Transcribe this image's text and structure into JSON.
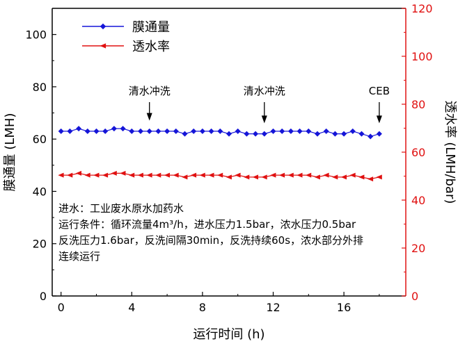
{
  "chart_data": {
    "type": "line",
    "xlabel": "运行时间 (h)",
    "ylabel_left": "膜通量 (LMH)",
    "ylabel_right": "透水率 (LMH/bar)",
    "xlim": [
      -0.5,
      19.5
    ],
    "ylim_left": [
      0,
      110
    ],
    "ylim_right": [
      0,
      120
    ],
    "xticks": [
      0,
      4,
      8,
      12,
      16
    ],
    "yticks_left": [
      0,
      20,
      40,
      60,
      80,
      100
    ],
    "yticks_right": [
      0,
      20,
      40,
      60,
      80,
      100,
      120
    ],
    "x": [
      0,
      0.5,
      1,
      1.5,
      2,
      2.5,
      3,
      3.5,
      4,
      4.5,
      5,
      5.5,
      6,
      6.5,
      7,
      7.5,
      8,
      8.5,
      9,
      9.5,
      10,
      10.5,
      11,
      11.5,
      12,
      12.5,
      13,
      13.5,
      14,
      14.5,
      15,
      15.5,
      16,
      16.5,
      17,
      17.5,
      18
    ],
    "series": [
      {
        "name": "膜通量",
        "axis": "left",
        "color": "#1515d8",
        "marker": "diamond",
        "values": [
          63,
          63,
          64,
          63,
          63,
          63,
          64,
          64,
          63,
          63,
          63,
          63,
          63,
          63,
          62,
          63,
          63,
          63,
          63,
          62,
          63,
          62,
          62,
          62,
          63,
          63,
          63,
          63,
          63,
          62,
          63,
          62,
          62,
          63,
          62,
          61,
          62
        ]
      },
      {
        "name": "透水率",
        "axis": "right",
        "color": "#e01010",
        "marker": "triangle-left",
        "values": [
          50.4,
          50.4,
          51.2,
          50.4,
          50.4,
          50.4,
          51.2,
          51.2,
          50.4,
          50.4,
          50.4,
          50.4,
          50.4,
          50.4,
          49.6,
          50.4,
          50.4,
          50.4,
          50.4,
          49.6,
          50.4,
          49.6,
          49.6,
          49.6,
          50.4,
          50.4,
          50.4,
          50.4,
          50.4,
          49.6,
          50.4,
          49.6,
          49.6,
          50.4,
          49.6,
          48.8,
          49.6
        ]
      }
    ],
    "annotations": [
      {
        "text": "清水冲洗",
        "x": 5,
        "y": 66
      },
      {
        "text": "清水冲洗",
        "x": 11.5,
        "y": 65
      },
      {
        "text": "CEB",
        "x": 18,
        "y": 65
      }
    ],
    "condition_text": [
      "进水：工业废水原水加药水",
      "运行条件：循环流量4m³/h，进水压力1.5bar，浓水压力0.5bar",
      "反洗压力1.6bar，反洗间隔30min，反洗持续60s，浓水部分外排",
      "连续运行"
    ],
    "legend_position": "top-left",
    "grid": false
  }
}
